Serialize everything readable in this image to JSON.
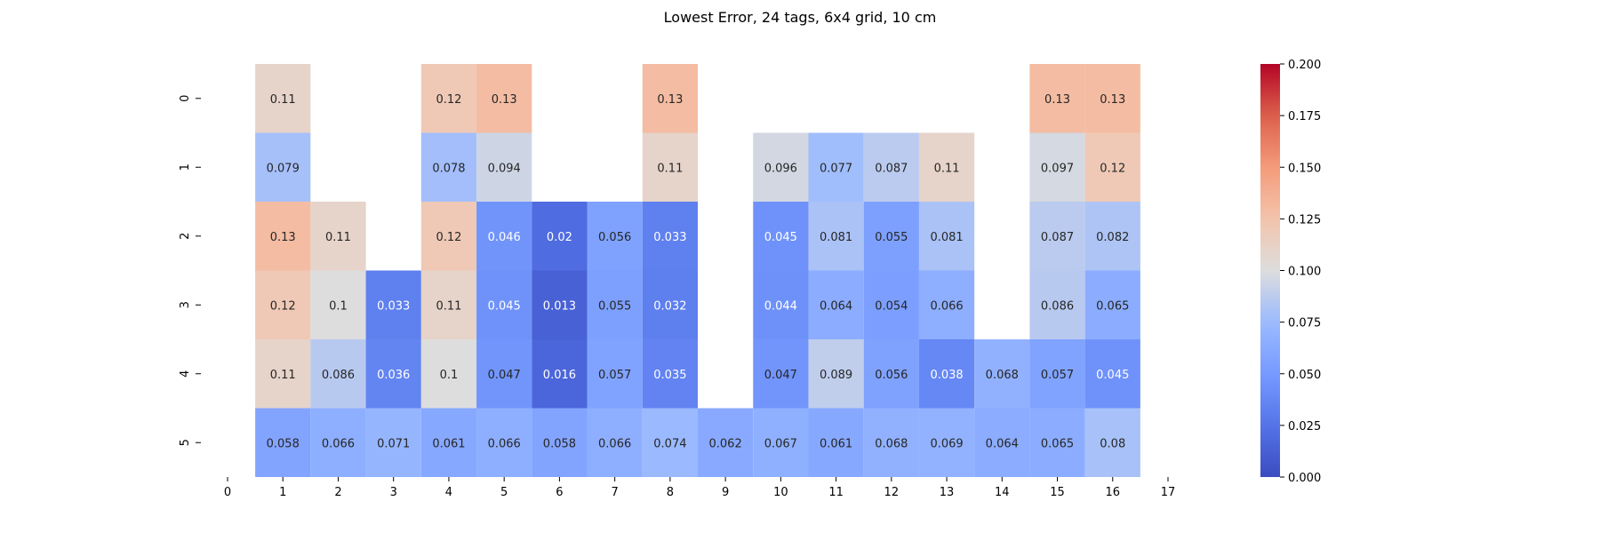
{
  "chart_data": {
    "type": "heatmap",
    "title": "Lowest Error, 24 tags, 6x4 grid, 10 cm",
    "xlabel": "",
    "ylabel": "",
    "x_ticks": [
      "0",
      "1",
      "2",
      "3",
      "4",
      "5",
      "6",
      "7",
      "8",
      "9",
      "10",
      "11",
      "12",
      "13",
      "14",
      "15",
      "16",
      "17"
    ],
    "y_ticks": [
      "0",
      "1",
      "2",
      "3",
      "4",
      "5"
    ],
    "colorbar": {
      "min": 0.0,
      "max": 0.2,
      "ticks": [
        "0.000",
        "0.025",
        "0.050",
        "0.075",
        "0.100",
        "0.125",
        "0.150",
        "0.175",
        "0.200"
      ],
      "colormap": "coolwarm"
    },
    "columns": [
      1,
      2,
      3,
      4,
      5,
      6,
      7,
      8,
      9,
      10,
      11,
      12,
      13,
      14,
      15,
      16
    ],
    "rows": [
      0,
      1,
      2,
      3,
      4,
      5
    ],
    "values": [
      [
        0.11,
        null,
        null,
        0.12,
        0.13,
        null,
        null,
        0.13,
        null,
        null,
        null,
        null,
        null,
        null,
        0.13,
        0.13
      ],
      [
        0.079,
        null,
        null,
        0.078,
        0.094,
        null,
        null,
        0.11,
        null,
        0.096,
        0.077,
        0.087,
        0.11,
        null,
        0.097,
        0.12
      ],
      [
        0.13,
        0.11,
        null,
        0.12,
        0.046,
        0.02,
        0.056,
        0.033,
        null,
        0.045,
        0.081,
        0.055,
        0.081,
        null,
        0.087,
        0.082
      ],
      [
        0.12,
        0.1,
        0.033,
        0.11,
        0.045,
        0.013,
        0.055,
        0.032,
        null,
        0.044,
        0.064,
        0.054,
        0.066,
        null,
        0.086,
        0.065
      ],
      [
        0.11,
        0.086,
        0.036,
        0.1,
        0.047,
        0.016,
        0.057,
        0.035,
        null,
        0.047,
        0.089,
        0.056,
        0.038,
        0.068,
        0.057,
        0.045
      ],
      [
        0.058,
        0.066,
        0.071,
        0.061,
        0.066,
        0.058,
        0.066,
        0.074,
        0.062,
        0.067,
        0.061,
        0.068,
        0.069,
        0.064,
        0.065,
        0.08
      ]
    ]
  }
}
